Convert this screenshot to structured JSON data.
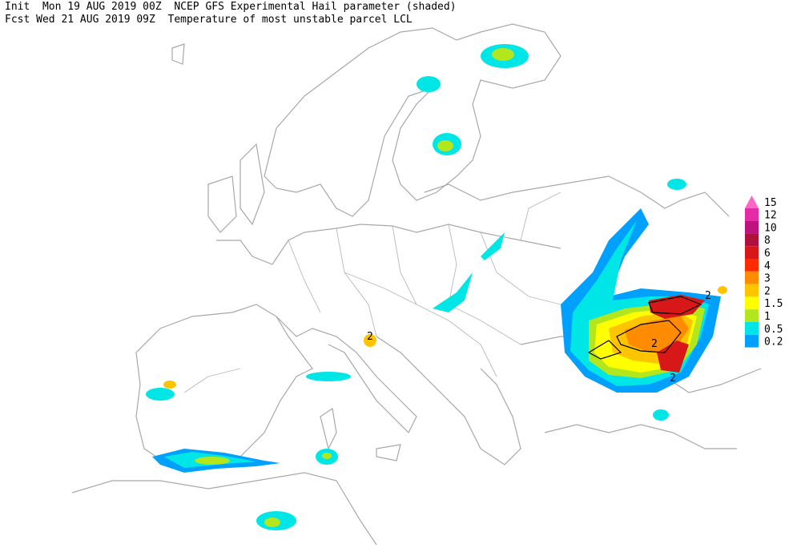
{
  "header": {
    "line1": "Init  Mon 19 AUG 2019 00Z  NCEP GFS Experimental Hail parameter (shaded)",
    "line2": "Fcst Wed 21 AUG 2019 09Z  Temperature of most unstable parcel LCL"
  },
  "legend": {
    "items": [
      {
        "label": "15",
        "color": "#ff66c4"
      },
      {
        "label": "12",
        "color": "#e62ba6"
      },
      {
        "label": "10",
        "color": "#c0127e"
      },
      {
        "label": "8",
        "color": "#b0103c"
      },
      {
        "label": "6",
        "color": "#d81818"
      },
      {
        "label": "4",
        "color": "#ff2a00"
      },
      {
        "label": "3",
        "color": "#ff8c00"
      },
      {
        "label": "2",
        "color": "#ffc400"
      },
      {
        "label": "1.5",
        "color": "#ffff00"
      },
      {
        "label": "1",
        "color": "#b4e61e"
      },
      {
        "label": "0.5",
        "color": "#00e6e6"
      },
      {
        "label": "0.2",
        "color": "#00a0ff"
      }
    ]
  },
  "contour_labels": [
    "2",
    "2",
    "2",
    "2"
  ]
}
